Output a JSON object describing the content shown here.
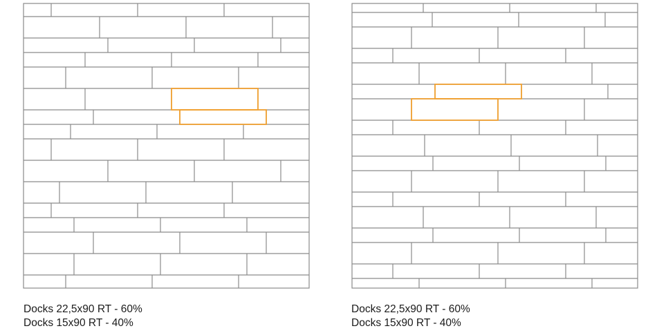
{
  "patterns": [
    {
      "caption_line1": "Docks 22,5x90 RT - 60%",
      "caption_line2": "Docks 15x90 RT - 40%"
    },
    {
      "caption_line1": "Docks 22,5x90 RT - 60%",
      "caption_line2": "Docks 15x90 RT - 40%"
    }
  ],
  "colors": {
    "joint_lines": "#8a8a8a",
    "highlight": "#f0a030"
  }
}
